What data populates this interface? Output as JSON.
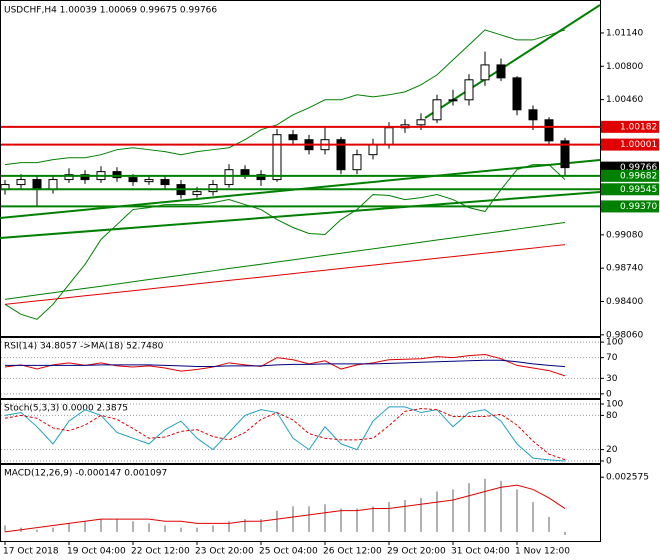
{
  "chart_data": [
    {
      "type": "candlestick",
      "title": "USDCHF,H4  1.00039 1.00069 0.99675 0.99766",
      "open": [
        0.99542,
        0.99593,
        0.99644,
        0.99542,
        0.99644,
        0.99694,
        0.99644,
        0.99725,
        0.99664,
        0.99623,
        0.99644,
        0.99593,
        0.99491,
        0.99521,
        0.99593,
        0.99745,
        0.99694,
        0.99644,
        1.00102,
        1.00051,
        0.99949,
        1.00051,
        0.99745,
        0.99898,
        1.0,
        1.00173,
        1.00203,
        1.00254,
        1.00458,
        1.00458,
        1.00662,
        1.00814,
        1.00682,
        1.00356,
        1.00254,
        1.00039
      ],
      "high": [
        0.9964,
        0.997,
        0.9969,
        0.9969,
        0.9976,
        0.9974,
        0.9978,
        0.9977,
        0.997,
        0.9969,
        0.9968,
        0.9964,
        0.9957,
        0.9964,
        0.998,
        0.9979,
        0.9974,
        1.0016,
        1.0015,
        1.001,
        1.0018,
        1.0008,
        0.9995,
        1.0006,
        1.0023,
        1.0026,
        1.0032,
        1.0051,
        1.0056,
        1.0072,
        1.0095,
        1.0088,
        1.007,
        1.004,
        1.0028,
        1.00069
      ],
      "low": [
        0.9949,
        0.9954,
        0.9938,
        0.995,
        0.9961,
        0.996,
        0.9961,
        0.9962,
        0.9958,
        0.9959,
        0.9955,
        0.9945,
        0.9946,
        0.9948,
        0.9956,
        0.9965,
        0.9958,
        0.9962,
        0.9999,
        0.999,
        0.999,
        0.997,
        0.997,
        0.9985,
        0.9996,
        1.0012,
        1.0015,
        1.0022,
        1.004,
        1.004,
        1.006,
        1.0065,
        1.003,
        1.0015,
        0.9999,
        0.99675
      ],
      "close": [
        0.99593,
        0.99644,
        0.99542,
        0.99644,
        0.99694,
        0.99644,
        0.99725,
        0.99664,
        0.99623,
        0.99644,
        0.99593,
        0.99491,
        0.99521,
        0.99593,
        0.99745,
        0.99694,
        0.99644,
        1.00102,
        1.00051,
        0.99949,
        1.00051,
        0.99745,
        0.99898,
        1.0,
        1.00173,
        1.00203,
        1.00254,
        1.00458,
        1.00458,
        1.00662,
        1.00814,
        1.00682,
        1.00356,
        1.00254,
        1.00039,
        0.99766
      ],
      "up_color": "#ffffff",
      "down_color": "#000000",
      "overlays": [
        {
          "color": "#008000",
          "values": [
            0.99796,
            0.99817,
            0.99817,
            0.99847,
            0.99867,
            0.99867,
            0.99898,
            0.99949,
            0.99969,
            0.99949,
            0.99929,
            0.99898,
            0.99929,
            0.99949,
            0.99969,
            1.00051,
            1.00153,
            1.00203,
            1.00305,
            1.00376,
            1.00458,
            1.00458,
            1.00509,
            1.00488,
            1.00509,
            1.00539,
            1.00611,
            1.00712,
            1.00865,
            1.01018,
            1.01171,
            1.0112,
            1.01069,
            1.01069,
            1.0112,
            1.01171
          ]
        },
        {
          "color": "#008000",
          "values": [
            0.98371,
            0.98269,
            0.98218,
            0.98371,
            0.98575,
            0.98778,
            0.99033,
            0.99185,
            0.99338,
            0.99358,
            0.99389,
            0.99389,
            0.99389,
            0.99409,
            0.9944,
            0.99389,
            0.99338,
            0.99236,
            0.99155,
            0.99094,
            0.99084,
            0.99236,
            0.99338,
            0.99491,
            0.99481,
            0.9944,
            0.9946,
            0.99491,
            0.9944,
            0.99358,
            0.99318,
            0.99542,
            0.99745,
            0.99796,
            0.99796,
            0.99644
          ]
        },
        {
          "color": "#008000",
          "values": [
            0.98422,
            0.98444,
            0.98467,
            0.98489,
            0.98512,
            0.98534,
            0.98556,
            0.98579,
            0.98601,
            0.98624,
            0.98646,
            0.98668,
            0.98691,
            0.98713,
            0.98736,
            0.98758,
            0.9878,
            0.98803,
            0.98825,
            0.98848,
            0.9887,
            0.98892,
            0.98915,
            0.98937,
            0.9896,
            0.98982,
            0.99004,
            0.99027,
            0.99049,
            0.99072,
            0.99094,
            0.99116,
            0.99139,
            0.99161,
            0.99184,
            0.99206
          ]
        },
        {
          "color": "#e00000",
          "values": [
            0.98371,
            0.98388,
            0.98406,
            0.98423,
            0.98441,
            0.98458,
            0.98475,
            0.98493,
            0.9851,
            0.98528,
            0.98545,
            0.98562,
            0.9858,
            0.98597,
            0.98615,
            0.98632,
            0.98649,
            0.98667,
            0.98684,
            0.98702,
            0.98719,
            0.98736,
            0.98754,
            0.98771,
            0.98789,
            0.98806,
            0.98823,
            0.98841,
            0.98858,
            0.98876,
            0.98893,
            0.9891,
            0.98928,
            0.98945,
            0.98963,
            0.9898
          ]
        }
      ],
      "levels": [
        {
          "value": 1.00182,
          "color": "#e00000"
        },
        {
          "value": 1.00001,
          "color": "#e00000"
        },
        {
          "value": 0.99766,
          "color": "#000000",
          "line": false
        },
        {
          "value": 0.99682,
          "color": "#008000"
        },
        {
          "value": 0.99545,
          "color": "#008000"
        },
        {
          "value": 0.9937,
          "label": "0.99370",
          "color": "#008000"
        }
      ],
      "ylim": [
        0.98058,
        1.01456
      ],
      "yticks": [
        {
          "value": 1.0114,
          "label": "1.01140"
        },
        {
          "value": 1.008,
          "label": "1.00800"
        },
        {
          "value": 1.0046,
          "label": "1.00460"
        },
        {
          "value": 0.9908,
          "label": "0.99080"
        },
        {
          "value": 0.9874,
          "label": "0.98740"
        },
        {
          "value": 0.984,
          "label": "0.98400"
        },
        {
          "value": 0.9806,
          "label": "0.98060"
        }
      ],
      "xticks": [
        {
          "value": 0,
          "label": "17 Oct 2018"
        },
        {
          "value": 4,
          "label": "19 Oct 04:00"
        },
        {
          "value": 8,
          "label": "22 Oct 12:00"
        },
        {
          "value": 12,
          "label": "23 Oct 20:00"
        },
        {
          "value": 16,
          "label": "25 Oct 04:00"
        },
        {
          "value": 20,
          "label": "26 Oct 12:00"
        },
        {
          "value": 24,
          "label": "29 Oct 20:00"
        },
        {
          "value": 28,
          "label": "31 Oct 04:00"
        },
        {
          "value": 32,
          "label": "1 Nov 12:00"
        }
      ]
    },
    {
      "type": "line",
      "title": "RSI(14) 34.8057 ->MA(18) 52.7480",
      "ylim": [
        -8,
        108
      ],
      "yticks": [
        0,
        30,
        70,
        100
      ],
      "grid": true,
      "series": [
        {
          "color": "#e00000",
          "values": [
            52,
            56,
            48,
            56,
            60,
            55,
            60,
            54,
            52,
            54,
            50,
            44,
            47,
            52,
            60,
            56,
            53,
            70,
            66,
            58,
            64,
            48,
            56,
            60,
            66,
            67,
            68,
            72,
            70,
            74,
            76,
            68,
            55,
            50,
            45,
            34.8057
          ]
        },
        {
          "color": "#000080",
          "values": [
            55,
            55,
            55,
            55,
            55,
            55,
            56,
            56,
            56,
            56,
            55,
            54,
            53,
            53,
            54,
            54,
            54,
            56,
            57,
            57,
            58,
            58,
            58,
            58,
            59,
            60,
            61,
            62,
            63,
            64,
            65,
            65,
            62,
            58,
            55,
            52.748
          ]
        }
      ]
    },
    {
      "type": "line",
      "title": "Stoch(5,3,3) 0.0000 2.3875",
      "ylim": [
        -3.5,
        107
      ],
      "yticks": [
        0,
        20,
        80,
        100
      ],
      "grid": true,
      "series": [
        {
          "color": "#20a0c0",
          "values": [
            80,
            85,
            60,
            30,
            70,
            90,
            80,
            50,
            40,
            30,
            55,
            70,
            40,
            20,
            50,
            80,
            90,
            85,
            40,
            20,
            60,
            30,
            20,
            70,
            95,
            95,
            85,
            90,
            60,
            85,
            90,
            70,
            30,
            5,
            2,
            0
          ]
        },
        {
          "color": "#e00000",
          "dash": true,
          "values": [
            75,
            80,
            75,
            58,
            53,
            63,
            80,
            73,
            57,
            40,
            42,
            52,
            55,
            43,
            37,
            50,
            73,
            85,
            72,
            48,
            40,
            37,
            37,
            40,
            62,
            87,
            92,
            90,
            78,
            78,
            78,
            82,
            63,
            35,
            12,
            2.3875
          ]
        }
      ]
    },
    {
      "type": "macd",
      "title": "MACD(12,26,9) -0.000147 0.001097",
      "ylim": [
        -0.00043,
        0.00315
      ],
      "yticks": [
        0.002575
      ],
      "color": "#b0b0b0",
      "values": [
        0.0003,
        0.0002,
        0.0001,
        0.0002,
        0.0004,
        0.0005,
        0.0006,
        0.0006,
        0.0005,
        0.0004,
        0.0003,
        0.0002,
        0.0002,
        0.0003,
        0.0005,
        0.0006,
        0.0006,
        0.001,
        0.0012,
        0.0012,
        0.0013,
        0.0011,
        0.0011,
        0.0012,
        0.0014,
        0.0015,
        0.0016,
        0.0019,
        0.002,
        0.0023,
        0.0025,
        0.0024,
        0.002,
        0.0014,
        0.0007,
        -0.000147
      ],
      "series": [
        {
          "color": "#e00000",
          "values": [
            0,
            0.0001,
            0.0002,
            0.0003,
            0.0004,
            0.0005,
            0.0006,
            0.0006,
            0.0006,
            0.0006,
            0.0005,
            0.0005,
            0.0004,
            0.0004,
            0.0004,
            0.0005,
            0.0005,
            0.0006,
            0.0007,
            0.0008,
            0.0009,
            0.001,
            0.001,
            0.0011,
            0.0011,
            0.0012,
            0.0013,
            0.0014,
            0.0015,
            0.0017,
            0.0019,
            0.0021,
            0.0022,
            0.002,
            0.0016,
            0.001097
          ]
        }
      ]
    }
  ]
}
